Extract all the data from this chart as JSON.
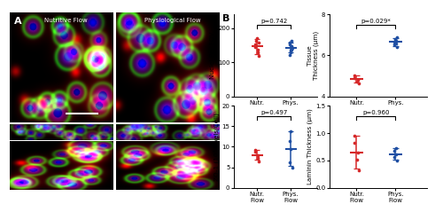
{
  "panel_A_label": "A",
  "panel_B_label": "B",
  "label_nutr": "Nutritive Flow",
  "label_phys": "Physiological Flow",
  "top_left": {
    "ylabel": "Nuclei Per FOV",
    "pvalue": "p=0.742",
    "ylim": [
      0,
      240
    ],
    "yticks": [
      0,
      100,
      200
    ],
    "nutr_mean": 147,
    "nutr_sd": 22,
    "phys_mean": 143,
    "phys_sd": 15,
    "nutr_points": [
      118,
      128,
      138,
      145,
      152,
      158,
      162,
      170
    ],
    "phys_points": [
      122,
      128,
      133,
      138,
      143,
      148,
      153,
      158,
      163
    ]
  },
  "top_right": {
    "ylabel": "Tissue\nThickness (μm)",
    "pvalue": "p=0.029*",
    "ylim": [
      4,
      8
    ],
    "yticks": [
      4,
      6,
      8
    ],
    "nutr_mean": 4.85,
    "nutr_sd": 0.18,
    "phys_mean": 6.65,
    "phys_sd": 0.18,
    "nutr_points": [
      4.62,
      4.72,
      4.82,
      4.92,
      5.02
    ],
    "phys_points": [
      6.42,
      6.52,
      6.6,
      6.65,
      6.7,
      6.78,
      6.88
    ]
  },
  "bottom_left": {
    "ylabel": "ZO-1 (10³ Pixels/Cell)",
    "pvalue": "p=0.497",
    "ylim": [
      0,
      20
    ],
    "yticks": [
      0,
      5,
      10,
      15,
      20
    ],
    "nutr_mean": 8.0,
    "nutr_sd": 1.2,
    "phys_mean": 9.5,
    "phys_sd": 4.2,
    "nutr_points": [
      6.5,
      7.2,
      8.0,
      8.8,
      9.2
    ],
    "phys_points": [
      5.0,
      6.2,
      9.5,
      11.5,
      13.8
    ]
  },
  "bottom_right": {
    "ylabel": "Laminin Thickness (μm)",
    "pvalue": "p=0.960",
    "ylim": [
      0,
      1.5
    ],
    "yticks": [
      0.0,
      0.5,
      1.0,
      1.5
    ],
    "nutr_mean": 0.65,
    "nutr_sd": 0.3,
    "phys_mean": 0.62,
    "phys_sd": 0.1,
    "nutr_points": [
      0.32,
      0.52,
      0.65,
      0.82,
      0.95
    ],
    "phys_points": [
      0.5,
      0.57,
      0.62,
      0.67,
      0.72
    ]
  },
  "color_nutr": "#d62728",
  "color_phys": "#1f4fa3",
  "xtick_labels": [
    "Nutr.\nFlow",
    "Phys.\nFlow"
  ],
  "background_color": "#ffffff",
  "img_bg": "#0a0a18",
  "img_border": "#222233"
}
